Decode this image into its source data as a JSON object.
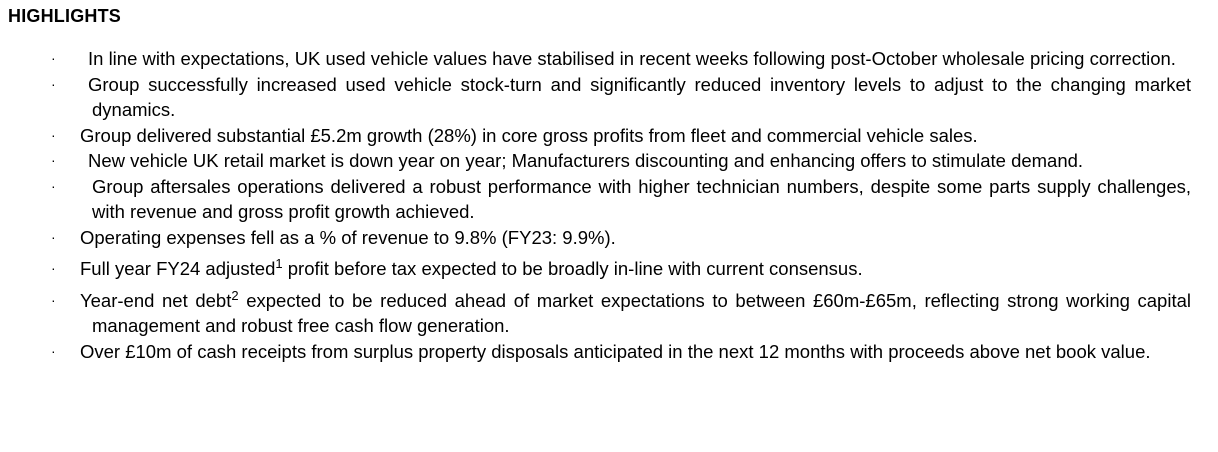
{
  "heading": "HIGHLIGHTS",
  "bullet_glyph": "·",
  "items": [
    {
      "text": "In line with expectations, UK used vehicle values have stabilised in recent weeks following post-October wholesale pricing correction."
    },
    {
      "text": "Group successfully increased used vehicle stock-turn and significantly reduced inventory levels to adjust to the changing market dynamics."
    },
    {
      "text": "Group delivered substantial £5.2m growth (28%) in core gross profits from fleet and commercial vehicle sales."
    },
    {
      "text": "New vehicle UK retail market is down year on year; Manufacturers discounting and enhancing offers to stimulate demand."
    },
    {
      "text": "Group aftersales operations delivered a robust performance with higher technician numbers, despite some parts supply challenges, with revenue and gross profit growth achieved."
    },
    {
      "text": "Operating expenses fell as a % of revenue to 9.8% (FY23: 9.9%)."
    },
    {
      "text_before": "Full year FY24 adjusted",
      "sup": "1",
      "text_after": " profit before tax expected to be broadly in-line with current consensus."
    },
    {
      "text_before": "Year-end net debt",
      "sup": "2",
      "text_after": " expected to be reduced ahead of market expectations to between £60m-£65m, reflecting strong working capital management and robust free cash flow generation."
    },
    {
      "text": "Over £10m of cash receipts from surplus property disposals anticipated in the next 12 months with proceeds above net book value."
    }
  ]
}
